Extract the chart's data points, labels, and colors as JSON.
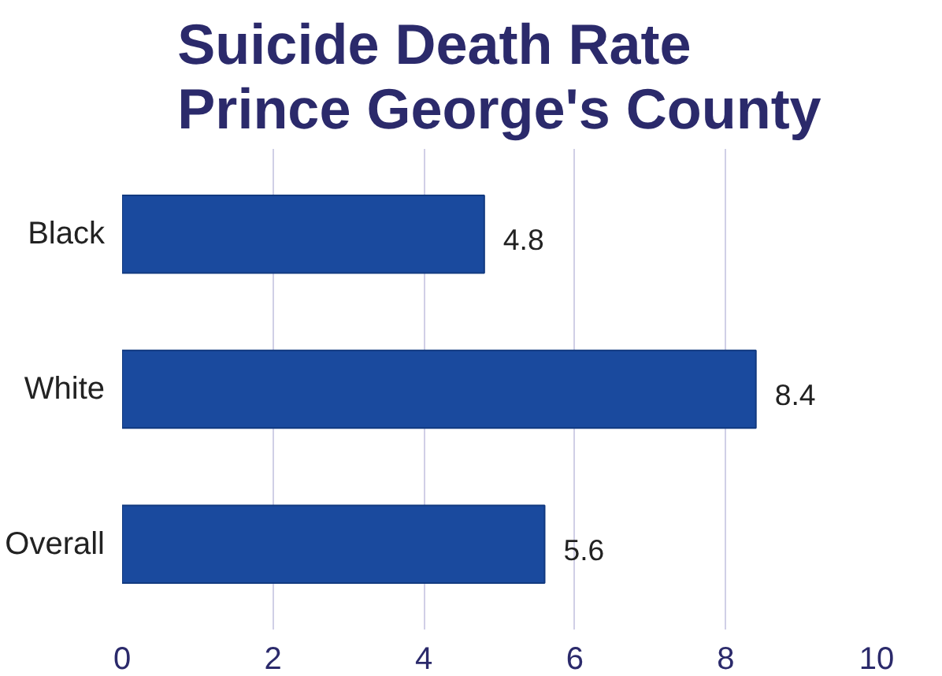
{
  "chart_data": {
    "type": "bar",
    "orientation": "horizontal",
    "title": "Suicide Death Rate\nPrince George's County",
    "categories": [
      "Black",
      "White",
      "Overall"
    ],
    "values": [
      4.8,
      8.4,
      5.6
    ],
    "color": "#1a4a9e",
    "xlim": [
      0,
      10
    ],
    "xticks": [
      0,
      2,
      4,
      6,
      8,
      10
    ],
    "grid": "x",
    "data_labels": true
  }
}
